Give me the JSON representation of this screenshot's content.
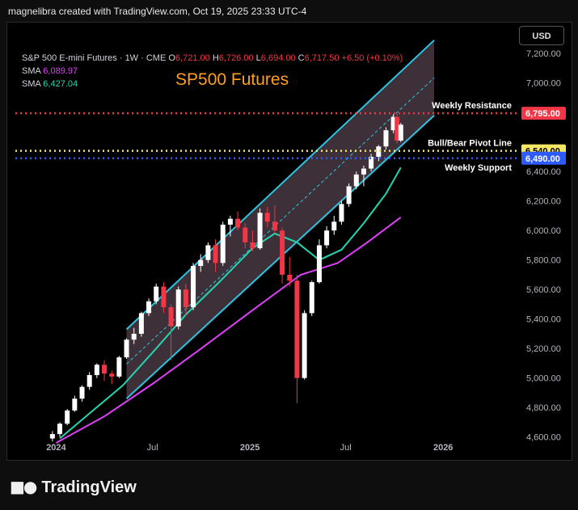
{
  "caption": "magnelibra created with TradingView.com, Oct 19, 2025 23:33 UTC-4",
  "footer": {
    "brand": "TradingView"
  },
  "header": {
    "symbol": "S&P 500 E-mini Futures · 1W · CME",
    "open_label": "O",
    "open": "6,721.00",
    "high_label": "H",
    "high": "6,726.00",
    "low_label": "L",
    "low": "6,694.00",
    "close_label": "C",
    "close": "6,717.50",
    "change": "+6.50 (+0.10%)",
    "currency_button": "USD"
  },
  "indicators": [
    {
      "label": "SMA",
      "value": "6,089.97",
      "color": "#e040fb"
    },
    {
      "label": "SMA",
      "value": "6,427.04",
      "color": "#26d4b0"
    }
  ],
  "chart_data": {
    "type": "candlestick",
    "title": "SP500 Futures",
    "colors": {
      "up": "#ffffff",
      "down": "#f23645",
      "sma_long": "#e040fb",
      "sma_short": "#26d4b0",
      "channel": "#2ec4e0",
      "resistance": "#f23645",
      "pivot": "#f5e663",
      "support": "#2d5bff",
      "title": "#ff9f1c"
    },
    "y_axis": {
      "ticks": [
        4600,
        4800,
        5000,
        5200,
        5400,
        5600,
        5800,
        6000,
        6200,
        6400,
        7000,
        7200
      ],
      "tick_labels": [
        "4,600.00",
        "4,800.00",
        "5,000.00",
        "5,200.00",
        "5,400.00",
        "5,600.00",
        "5,800.00",
        "6,000.00",
        "6,200.00",
        "6,400.00",
        "7,000.00",
        "7,200.00"
      ],
      "range": [
        4560,
        7300
      ]
    },
    "x_axis": {
      "labels": [
        "2024",
        "Jul",
        "2025",
        "Jul",
        "2026"
      ],
      "label_dates": [
        "2024-01-01",
        "2024-07-01",
        "2025-01-01",
        "2025-07-01",
        "2026-01-01"
      ],
      "range": [
        "2023-10-16",
        "2026-05-12"
      ]
    },
    "grid": false,
    "levels": [
      {
        "name": "Weekly Resistance",
        "value": 6795,
        "label": "6,795.00",
        "color": "#f23645",
        "label_text_color": "#ffffff"
      },
      {
        "name": "Bull/Bear Pivot Line",
        "value": 6540,
        "label": "6,540.00",
        "color": "#f5e663",
        "label_text_color": "#000000"
      },
      {
        "name": "Weekly Support",
        "value": 6490,
        "label": "6,490.00",
        "color": "#2d5bff",
        "label_text_color": "#ffffff"
      }
    ],
    "channel": {
      "upper": [
        [
          "2024-05-13",
          5330
        ],
        [
          "2025-12-15",
          7290
        ]
      ],
      "lower": [
        [
          "2024-05-13",
          4860
        ],
        [
          "2025-12-15",
          6780
        ]
      ],
      "mid": [
        [
          "2024-05-13",
          5095
        ],
        [
          "2025-12-15",
          7035
        ]
      ]
    },
    "ohlc_weekly_approx": [
      [
        "2023-12-25",
        4590,
        4640,
        4570,
        4620
      ],
      [
        "2024-01-08",
        4620,
        4700,
        4600,
        4690
      ],
      [
        "2024-01-22",
        4690,
        4790,
        4680,
        4780
      ],
      [
        "2024-02-05",
        4780,
        4880,
        4770,
        4860
      ],
      [
        "2024-02-19",
        4860,
        4950,
        4840,
        4940
      ],
      [
        "2024-03-04",
        4940,
        5040,
        4920,
        5020
      ],
      [
        "2024-03-18",
        5020,
        5100,
        5000,
        5090
      ],
      [
        "2024-04-01",
        5090,
        5120,
        4980,
        5030
      ],
      [
        "2024-04-15",
        5030,
        5050,
        4960,
        5010
      ],
      [
        "2024-04-29",
        5010,
        5150,
        5000,
        5140
      ],
      [
        "2024-05-13",
        5140,
        5270,
        5130,
        5260
      ],
      [
        "2024-05-27",
        5260,
        5340,
        5230,
        5300
      ],
      [
        "2024-06-10",
        5300,
        5450,
        5280,
        5440
      ],
      [
        "2024-06-24",
        5440,
        5540,
        5420,
        5520
      ],
      [
        "2024-07-08",
        5520,
        5640,
        5500,
        5620
      ],
      [
        "2024-07-22",
        5620,
        5650,
        5440,
        5480
      ],
      [
        "2024-08-05",
        5480,
        5500,
        5120,
        5350
      ],
      [
        "2024-08-19",
        5350,
        5620,
        5330,
        5600
      ],
      [
        "2024-09-02",
        5600,
        5640,
        5420,
        5480
      ],
      [
        "2024-09-16",
        5480,
        5780,
        5460,
        5760
      ],
      [
        "2024-09-30",
        5760,
        5840,
        5720,
        5800
      ],
      [
        "2024-10-14",
        5800,
        5920,
        5780,
        5900
      ],
      [
        "2024-10-28",
        5900,
        5940,
        5720,
        5780
      ],
      [
        "2024-11-11",
        5780,
        6060,
        5760,
        6040
      ],
      [
        "2024-11-25",
        6040,
        6100,
        5960,
        6080
      ],
      [
        "2024-12-09",
        6080,
        6130,
        6000,
        6020
      ],
      [
        "2024-12-23",
        6020,
        6050,
        5880,
        5920
      ],
      [
        "2025-01-06",
        5920,
        6000,
        5860,
        5880
      ],
      [
        "2025-01-20",
        5880,
        6150,
        5870,
        6120
      ],
      [
        "2025-02-03",
        6120,
        6160,
        6020,
        6060
      ],
      [
        "2025-02-17",
        6060,
        6170,
        5980,
        6000
      ],
      [
        "2025-03-03",
        6000,
        6020,
        5640,
        5700
      ],
      [
        "2025-03-17",
        5700,
        5820,
        5620,
        5660
      ],
      [
        "2025-03-31",
        5660,
        5700,
        4830,
        5000
      ],
      [
        "2025-04-14",
        5000,
        5460,
        4990,
        5440
      ],
      [
        "2025-04-28",
        5440,
        5660,
        5420,
        5650
      ],
      [
        "2025-05-12",
        5650,
        5940,
        5640,
        5900
      ],
      [
        "2025-05-26",
        5900,
        6030,
        5880,
        6000
      ],
      [
        "2025-06-09",
        6000,
        6100,
        5970,
        6060
      ],
      [
        "2025-06-23",
        6060,
        6200,
        6040,
        6180
      ],
      [
        "2025-07-07",
        6180,
        6320,
        6160,
        6300
      ],
      [
        "2025-07-21",
        6300,
        6400,
        6280,
        6380
      ],
      [
        "2025-08-04",
        6380,
        6440,
        6300,
        6420
      ],
      [
        "2025-08-18",
        6420,
        6520,
        6400,
        6500
      ],
      [
        "2025-09-01",
        6500,
        6580,
        6470,
        6570
      ],
      [
        "2025-09-15",
        6570,
        6700,
        6550,
        6680
      ],
      [
        "2025-09-29",
        6680,
        6790,
        6660,
        6770
      ],
      [
        "2025-10-06",
        6770,
        6790,
        6590,
        6610
      ],
      [
        "2025-10-13",
        6610,
        6730,
        6600,
        6717.5
      ]
    ],
    "sma_short_approx": [
      [
        "2024-01-08",
        4590
      ],
      [
        "2024-03-04",
        4760
      ],
      [
        "2024-05-06",
        4950
      ],
      [
        "2024-07-08",
        5200
      ],
      [
        "2024-09-02",
        5430
      ],
      [
        "2024-11-04",
        5650
      ],
      [
        "2025-01-06",
        5880
      ],
      [
        "2025-02-17",
        5980
      ],
      [
        "2025-03-31",
        5920
      ],
      [
        "2025-05-12",
        5800
      ],
      [
        "2025-06-23",
        5870
      ],
      [
        "2025-08-04",
        6050
      ],
      [
        "2025-09-15",
        6250
      ],
      [
        "2025-10-13",
        6427
      ]
    ],
    "sma_long_approx": [
      [
        "2024-01-01",
        4560
      ],
      [
        "2024-04-01",
        4740
      ],
      [
        "2024-07-01",
        4960
      ],
      [
        "2024-10-01",
        5200
      ],
      [
        "2025-01-06",
        5460
      ],
      [
        "2025-04-07",
        5700
      ],
      [
        "2025-06-16",
        5780
      ],
      [
        "2025-08-11",
        5920
      ],
      [
        "2025-10-13",
        6090
      ]
    ]
  }
}
